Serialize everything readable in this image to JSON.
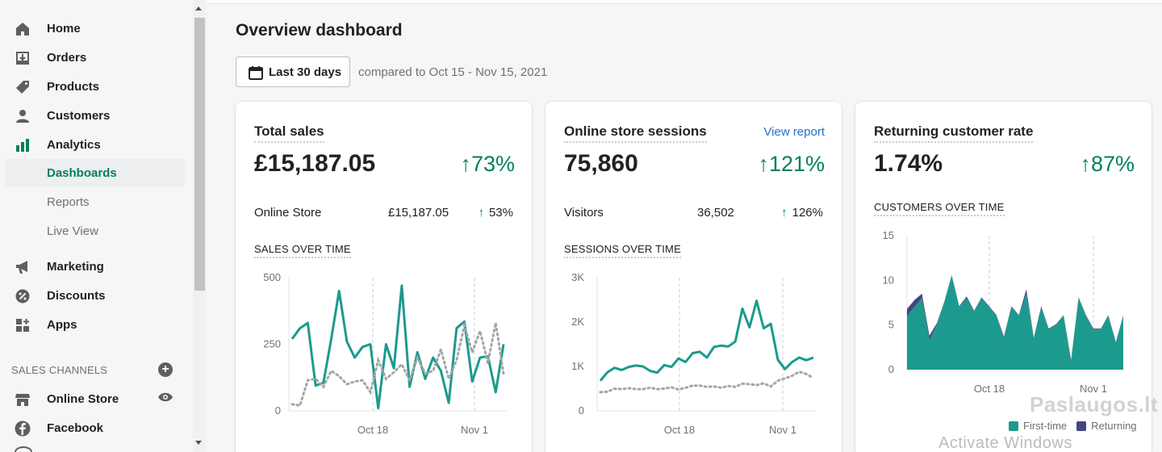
{
  "sidebar": {
    "items": [
      {
        "label": "Home",
        "icon": "home-icon"
      },
      {
        "label": "Orders",
        "icon": "orders-icon"
      },
      {
        "label": "Products",
        "icon": "tag-icon"
      },
      {
        "label": "Customers",
        "icon": "person-icon"
      },
      {
        "label": "Analytics",
        "icon": "bar-chart-icon"
      },
      {
        "label": "Dashboards"
      },
      {
        "label": "Reports"
      },
      {
        "label": "Live View"
      },
      {
        "label": "Marketing",
        "icon": "megaphone-icon"
      },
      {
        "label": "Discounts",
        "icon": "discount-icon"
      },
      {
        "label": "Apps",
        "icon": "apps-icon"
      }
    ],
    "sales_channels_title": "SALES CHANNELS",
    "channels": [
      {
        "label": "Online Store",
        "icon": "store-icon"
      },
      {
        "label": "Facebook",
        "icon": "facebook-icon"
      }
    ],
    "accent": "#008060"
  },
  "main": {
    "title": "Overview dashboard",
    "date_range": "Last 30 days",
    "compare": "compared to Oct 15 - Nov 15, 2021"
  },
  "cards": {
    "sales": {
      "title": "Total sales",
      "value": "£15,187.05",
      "change": "73%",
      "row_label": "Online Store",
      "row_value": "£15,187.05",
      "row_change": "53%",
      "chart_title": "SALES OVER TIME"
    },
    "sessions": {
      "title": "Online store sessions",
      "link": "View report",
      "value": "75,860",
      "change": "121%",
      "row_label": "Visitors",
      "row_value": "36,502",
      "row_change": "126%",
      "chart_title": "SESSIONS OVER TIME"
    },
    "returning": {
      "title": "Returning customer rate",
      "value": "1.74%",
      "change": "87%",
      "chart_title": "CUSTOMERS OVER TIME",
      "legend": [
        "First-time",
        "Returning"
      ]
    }
  },
  "watermark": "Activate Windows",
  "watermark2": "Paslaugos.lt",
  "chart_data": [
    {
      "type": "line",
      "ylim": [
        0,
        500
      ],
      "yticks": [
        "500",
        "250",
        "0"
      ],
      "xticks": [
        "Oct 18",
        "Nov 1"
      ],
      "color_current": "#1c9a8e",
      "color_previous": "#a3a6aa",
      "series": [
        {
          "values": [
            270,
            310,
            330,
            95,
            105,
            270,
            450,
            260,
            200,
            240,
            250,
            10,
            250,
            160,
            470,
            90,
            220,
            120,
            200,
            150,
            30,
            310,
            335,
            110,
            200,
            205,
            70,
            250
          ]
        },
        {
          "values": [
            25,
            20,
            115,
            120,
            90,
            150,
            130,
            100,
            110,
            115,
            70,
            190,
            120,
            145,
            175,
            115,
            200,
            140,
            150,
            230,
            120,
            190,
            320,
            220,
            300,
            180,
            330,
            140
          ]
        }
      ]
    },
    {
      "type": "line",
      "ylim": [
        0,
        3000
      ],
      "yticks": [
        "3K",
        "2K",
        "1K",
        "0"
      ],
      "xticks": [
        "Oct 18",
        "Nov 1"
      ],
      "color_current": "#1c9a8e",
      "color_previous": "#a3a6aa",
      "series": [
        {
          "values": [
            680,
            870,
            970,
            920,
            990,
            1020,
            1000,
            900,
            860,
            1030,
            990,
            1180,
            1100,
            1300,
            1330,
            1200,
            1440,
            1470,
            1450,
            1560,
            2300,
            1880,
            2480,
            1860,
            1960,
            1150,
            940,
            1100,
            1200,
            1140,
            1200
          ]
        },
        {
          "values": [
            420,
            430,
            500,
            490,
            510,
            490,
            490,
            520,
            490,
            500,
            530,
            480,
            520,
            570,
            570,
            540,
            550,
            520,
            560,
            540,
            610,
            600,
            580,
            620,
            550,
            680,
            730,
            790,
            880,
            830,
            740
          ]
        }
      ]
    },
    {
      "type": "area",
      "ylim": [
        0,
        15
      ],
      "yticks": [
        "15",
        "10",
        "5",
        "0"
      ],
      "xticks": [
        "Oct 18",
        "Nov 1"
      ],
      "color_first": "#1c9a8e",
      "color_returning": "#43467f",
      "series": [
        {
          "name": "First-time",
          "values": [
            6.0,
            7.0,
            8.0,
            3.3,
            5.0,
            7.5,
            10.5,
            7.0,
            8.0,
            6.5,
            8.0,
            7.0,
            6.0,
            3.5,
            7.0,
            6.0,
            8.5,
            3.5,
            7.0,
            4.5,
            5.0,
            6.0,
            1.0,
            8.0,
            6.0,
            4.5,
            4.5,
            6.0,
            3.0,
            6.0
          ]
        },
        {
          "name": "Returning",
          "values": [
            0.8,
            0.8,
            0.5,
            0.5,
            0.2,
            0.1,
            0.1,
            0.1,
            0.2,
            0.1,
            0.1,
            0.1,
            0.1,
            0.2,
            0.1,
            0.1,
            0.5,
            0.1,
            0.1,
            0.1,
            0.1,
            0.1,
            0.1,
            0.1,
            0.1,
            0.1,
            0.1,
            0.1,
            0.1,
            0.1
          ]
        }
      ]
    }
  ]
}
